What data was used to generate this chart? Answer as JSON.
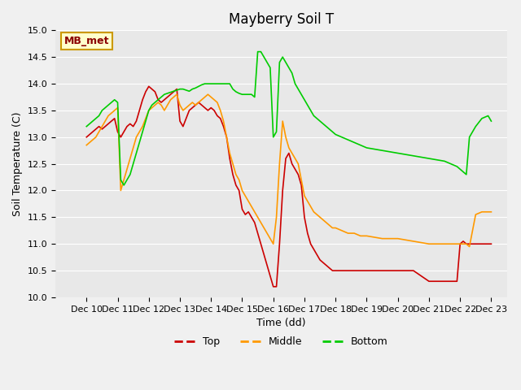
{
  "title": "Mayberry Soil T",
  "xlabel": "Time (dd)",
  "ylabel": "Soil Temperature (C)",
  "ylim": [
    10.0,
    15.0
  ],
  "yticks": [
    10.0,
    10.5,
    11.0,
    11.5,
    12.0,
    12.5,
    13.0,
    13.5,
    14.0,
    14.5,
    15.0
  ],
  "xlim_start": 9.0,
  "xlim_end": 23.5,
  "xtick_labels": [
    "Dec 10",
    "Dec 11",
    "Dec 12",
    "Dec 13",
    "Dec 14",
    "Dec 15",
    "Dec 16",
    "Dec 17",
    "Dec 18",
    "Dec 19",
    "Dec 20",
    "Dec 21",
    "Dec 22",
    "Dec 23"
  ],
  "xtick_positions": [
    10,
    11,
    12,
    13,
    14,
    15,
    16,
    17,
    18,
    19,
    20,
    21,
    22,
    23
  ],
  "colors": {
    "top": "#cc0000",
    "middle": "#ff9900",
    "bottom": "#00cc00",
    "background": "#e8e8e8",
    "plot_bg": "#e8e8e8"
  },
  "legend_box_label": "MB_met",
  "legend_entries": [
    "Top",
    "Middle",
    "Bottom"
  ],
  "top_x": [
    10.0,
    10.1,
    10.2,
    10.3,
    10.4,
    10.5,
    10.6,
    10.7,
    10.8,
    10.9,
    11.0,
    11.1,
    11.2,
    11.3,
    11.4,
    11.5,
    11.6,
    11.7,
    11.8,
    11.9,
    12.0,
    12.1,
    12.2,
    12.3,
    12.4,
    12.5,
    12.6,
    12.7,
    12.8,
    12.9,
    13.0,
    13.1,
    13.2,
    13.3,
    13.4,
    13.5,
    13.6,
    13.7,
    13.8,
    13.9,
    14.0,
    14.1,
    14.2,
    14.3,
    14.4,
    14.5,
    14.6,
    14.7,
    14.8,
    14.9,
    15.0,
    15.1,
    15.2,
    15.3,
    15.4,
    15.5,
    15.6,
    15.7,
    15.8,
    15.9,
    16.0,
    16.1,
    16.2,
    16.3,
    16.4,
    16.5,
    16.6,
    16.7,
    16.8,
    16.9,
    17.0,
    17.1,
    17.2,
    17.3,
    17.4,
    17.5,
    17.6,
    17.7,
    17.8,
    17.9,
    18.0,
    18.1,
    18.2,
    18.3,
    18.4,
    18.5,
    18.6,
    18.7,
    18.8,
    18.9,
    19.0,
    19.5,
    20.0,
    20.5,
    21.0,
    21.5,
    21.7,
    21.9,
    22.0,
    22.1,
    22.2,
    22.3,
    22.5,
    22.7,
    22.9,
    23.0
  ],
  "top_y": [
    13.0,
    13.05,
    13.1,
    13.15,
    13.2,
    13.15,
    13.2,
    13.25,
    13.3,
    13.35,
    13.1,
    13.0,
    13.1,
    13.2,
    13.25,
    13.2,
    13.3,
    13.5,
    13.7,
    13.85,
    13.95,
    13.9,
    13.85,
    13.7,
    13.65,
    13.7,
    13.75,
    13.8,
    13.85,
    13.9,
    13.3,
    13.2,
    13.35,
    13.5,
    13.55,
    13.6,
    13.65,
    13.6,
    13.55,
    13.5,
    13.55,
    13.5,
    13.4,
    13.35,
    13.2,
    13.0,
    12.6,
    12.3,
    12.1,
    12.0,
    11.65,
    11.55,
    11.6,
    11.5,
    11.4,
    11.2,
    11.0,
    10.8,
    10.6,
    10.4,
    10.2,
    10.2,
    11.0,
    12.0,
    12.6,
    12.7,
    12.5,
    12.4,
    12.3,
    12.1,
    11.5,
    11.2,
    11.0,
    10.9,
    10.8,
    10.7,
    10.65,
    10.6,
    10.55,
    10.5,
    10.5,
    10.5,
    10.5,
    10.5,
    10.5,
    10.5,
    10.5,
    10.5,
    10.5,
    10.5,
    10.5,
    10.5,
    10.5,
    10.5,
    10.3,
    10.3,
    10.3,
    10.3,
    11.0,
    11.05,
    11.0,
    11.0,
    11.0,
    11.0,
    11.0,
    11.0
  ],
  "middle_x": [
    10.0,
    10.1,
    10.2,
    10.3,
    10.4,
    10.5,
    10.6,
    10.7,
    10.8,
    10.9,
    11.0,
    11.1,
    11.2,
    11.3,
    11.4,
    11.5,
    11.6,
    11.7,
    11.8,
    11.9,
    12.0,
    12.1,
    12.2,
    12.3,
    12.4,
    12.5,
    12.6,
    12.7,
    12.8,
    12.9,
    13.0,
    13.1,
    13.2,
    13.3,
    13.4,
    13.5,
    13.6,
    13.7,
    13.8,
    13.9,
    14.0,
    14.1,
    14.2,
    14.3,
    14.4,
    14.5,
    14.6,
    14.7,
    14.8,
    14.9,
    15.0,
    15.1,
    15.2,
    15.3,
    15.4,
    15.5,
    15.6,
    15.7,
    15.8,
    15.9,
    16.0,
    16.1,
    16.2,
    16.3,
    16.4,
    16.5,
    16.6,
    16.7,
    16.8,
    16.9,
    17.0,
    17.1,
    17.2,
    17.3,
    17.4,
    17.5,
    17.6,
    17.7,
    17.8,
    17.9,
    18.0,
    18.2,
    18.4,
    18.6,
    18.8,
    19.0,
    19.5,
    20.0,
    20.5,
    21.0,
    21.5,
    21.7,
    21.9,
    22.0,
    22.1,
    22.2,
    22.3,
    22.5,
    22.7,
    22.9,
    23.0
  ],
  "middle_y": [
    12.85,
    12.9,
    12.95,
    13.0,
    13.1,
    13.2,
    13.3,
    13.4,
    13.45,
    13.5,
    13.55,
    12.0,
    12.2,
    12.4,
    12.6,
    12.8,
    13.0,
    13.1,
    13.2,
    13.35,
    13.5,
    13.55,
    13.6,
    13.65,
    13.6,
    13.5,
    13.6,
    13.7,
    13.75,
    13.8,
    13.6,
    13.5,
    13.55,
    13.6,
    13.65,
    13.6,
    13.65,
    13.7,
    13.75,
    13.8,
    13.75,
    13.7,
    13.65,
    13.5,
    13.3,
    13.0,
    12.7,
    12.5,
    12.3,
    12.2,
    12.0,
    11.9,
    11.8,
    11.7,
    11.6,
    11.5,
    11.4,
    11.3,
    11.2,
    11.1,
    11.0,
    11.5,
    12.5,
    13.3,
    13.0,
    12.8,
    12.7,
    12.6,
    12.5,
    12.2,
    11.9,
    11.8,
    11.7,
    11.6,
    11.55,
    11.5,
    11.45,
    11.4,
    11.35,
    11.3,
    11.3,
    11.25,
    11.2,
    11.2,
    11.15,
    11.15,
    11.1,
    11.1,
    11.05,
    11.0,
    11.0,
    11.0,
    11.0,
    11.0,
    11.0,
    11.0,
    10.95,
    11.55,
    11.6,
    11.6,
    11.6
  ],
  "bottom_x": [
    10.0,
    10.1,
    10.2,
    10.3,
    10.4,
    10.5,
    10.6,
    10.7,
    10.8,
    10.9,
    11.0,
    11.1,
    11.2,
    11.3,
    11.4,
    11.5,
    11.6,
    11.7,
    11.8,
    11.9,
    12.0,
    12.1,
    12.2,
    12.3,
    12.4,
    12.5,
    12.6,
    12.7,
    12.8,
    12.9,
    13.0,
    13.1,
    13.2,
    13.3,
    13.4,
    13.5,
    13.6,
    13.7,
    13.8,
    13.9,
    14.0,
    14.1,
    14.2,
    14.3,
    14.4,
    14.5,
    14.6,
    14.7,
    14.8,
    14.9,
    15.0,
    15.1,
    15.2,
    15.3,
    15.4,
    15.5,
    15.6,
    15.7,
    15.8,
    15.9,
    16.0,
    16.1,
    16.2,
    16.3,
    16.4,
    16.5,
    16.6,
    16.7,
    16.8,
    16.9,
    17.0,
    17.1,
    17.2,
    17.3,
    17.4,
    17.5,
    17.6,
    17.7,
    17.8,
    17.9,
    18.0,
    18.2,
    18.4,
    18.6,
    18.8,
    19.0,
    19.5,
    20.0,
    20.5,
    21.0,
    21.5,
    21.7,
    21.9,
    22.0,
    22.1,
    22.2,
    22.3,
    22.5,
    22.7,
    22.9,
    23.0
  ],
  "bottom_y": [
    13.2,
    13.25,
    13.3,
    13.35,
    13.4,
    13.5,
    13.55,
    13.6,
    13.65,
    13.7,
    13.65,
    12.2,
    12.1,
    12.2,
    12.3,
    12.5,
    12.7,
    12.9,
    13.1,
    13.3,
    13.5,
    13.6,
    13.65,
    13.7,
    13.75,
    13.8,
    13.82,
    13.84,
    13.86,
    13.88,
    13.9,
    13.9,
    13.88,
    13.86,
    13.9,
    13.92,
    13.95,
    13.98,
    14.0,
    14.0,
    14.0,
    14.0,
    14.0,
    14.0,
    14.0,
    14.0,
    14.0,
    13.9,
    13.85,
    13.82,
    13.8,
    13.8,
    13.8,
    13.8,
    13.75,
    14.6,
    14.6,
    14.5,
    14.4,
    14.3,
    13.0,
    13.1,
    14.4,
    14.5,
    14.4,
    14.3,
    14.2,
    14.0,
    13.9,
    13.8,
    13.7,
    13.6,
    13.5,
    13.4,
    13.35,
    13.3,
    13.25,
    13.2,
    13.15,
    13.1,
    13.05,
    13.0,
    12.95,
    12.9,
    12.85,
    12.8,
    12.75,
    12.7,
    12.65,
    12.6,
    12.55,
    12.5,
    12.45,
    12.4,
    12.35,
    12.3,
    13.0,
    13.2,
    13.35,
    13.4,
    13.3
  ]
}
